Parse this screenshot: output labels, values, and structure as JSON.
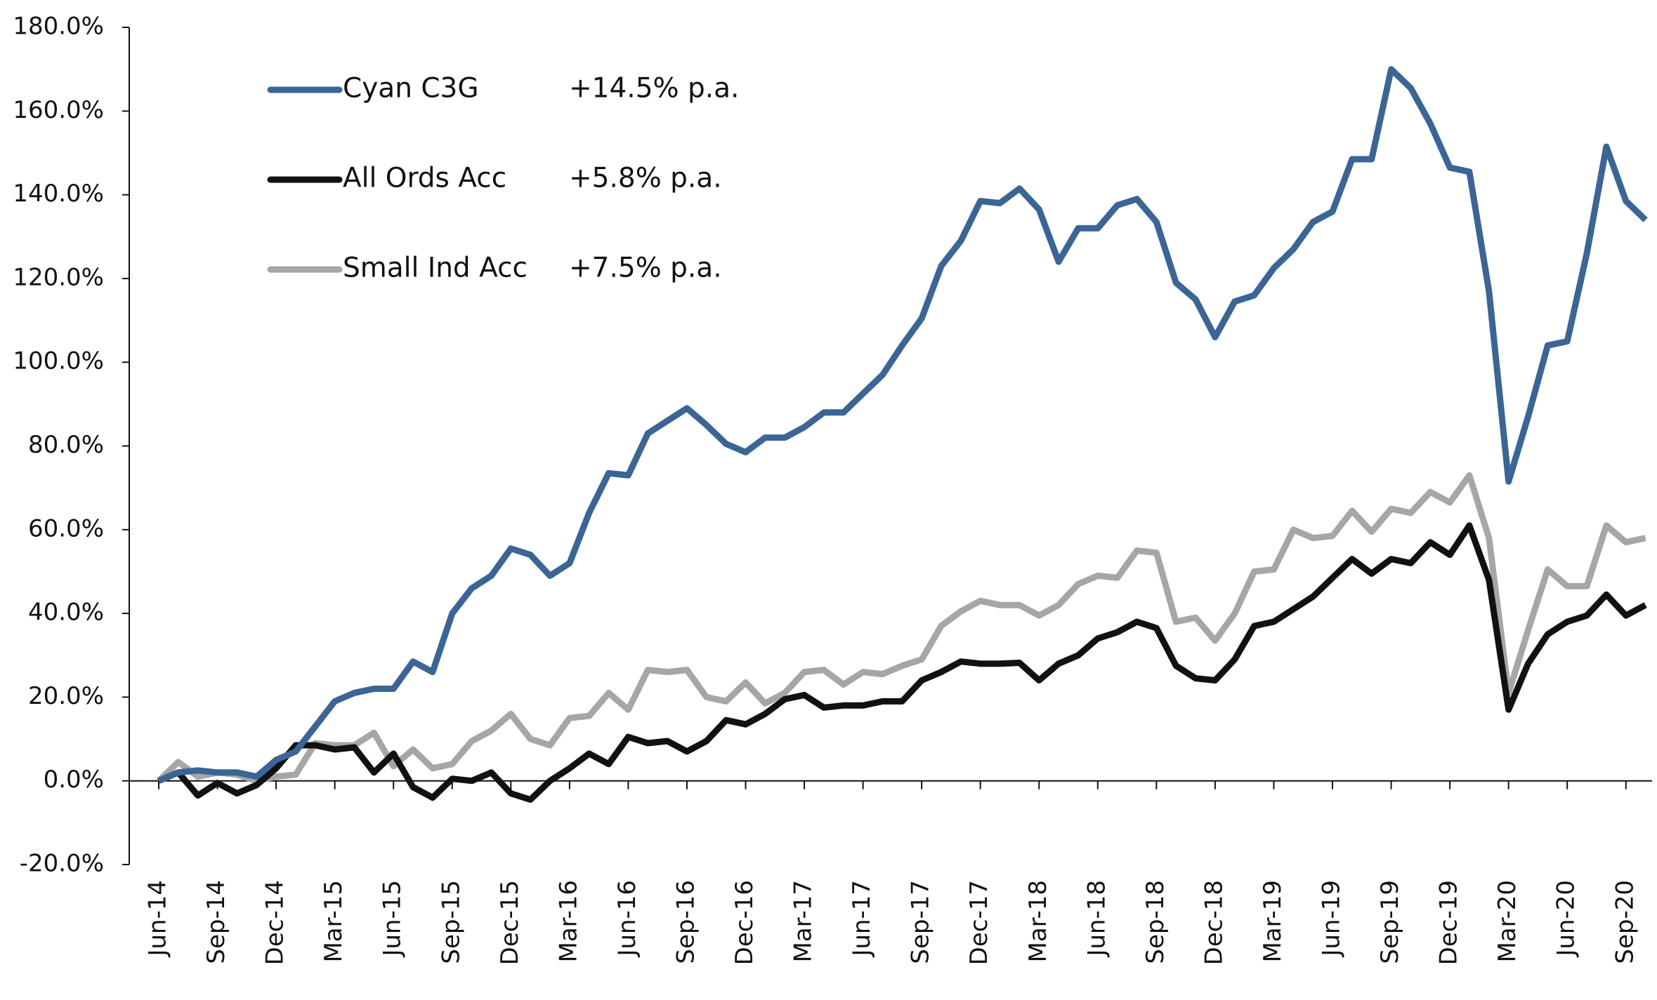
{
  "chart_data": {
    "type": "line",
    "categories": [
      "Jun-14",
      null,
      null,
      "Sep-14",
      null,
      null,
      "Dec-14",
      null,
      null,
      "Mar-15",
      null,
      null,
      "Jun-15",
      null,
      null,
      "Sep-15",
      null,
      null,
      "Dec-15",
      null,
      null,
      "Mar-16",
      null,
      null,
      "Jun-16",
      null,
      null,
      "Sep-16",
      null,
      null,
      "Dec-16",
      null,
      null,
      "Mar-17",
      null,
      null,
      "Jun-17",
      null,
      null,
      "Sep-17",
      null,
      null,
      "Dec-17",
      null,
      null,
      "Mar-18",
      null,
      null,
      "Jun-18",
      null,
      null,
      "Sep-18",
      null,
      null,
      "Dec-18",
      null,
      null,
      "Mar-19",
      null,
      null,
      "Jun-19",
      null,
      null,
      "Sep-19",
      null,
      null,
      "Dec-19",
      null,
      null,
      "Mar-20",
      null,
      null,
      "Jun-20",
      null,
      null,
      "Sep-20",
      null
    ],
    "series": [
      {
        "name": "Cyan C3G",
        "note": "+14.5% p.a.",
        "color": "#3a6595",
        "values": [
          0,
          2,
          2.5,
          2,
          2,
          1,
          5,
          7,
          13,
          19,
          21,
          22,
          22,
          28.5,
          26,
          40,
          46,
          49,
          55.5,
          54,
          49,
          52,
          64,
          73.5,
          73,
          83,
          86,
          89,
          85,
          80.5,
          78.5,
          82,
          82,
          84.5,
          88,
          88,
          92.5,
          97,
          104,
          110.5,
          123,
          129,
          138.5,
          138,
          141.5,
          136.5,
          124,
          132,
          132,
          137.5,
          139,
          133.5,
          119,
          115,
          106,
          114.5,
          116,
          122.5,
          127,
          133.5,
          136,
          148.5,
          148.5,
          170,
          165.5,
          157,
          146.5,
          145.5,
          117,
          71.5,
          87,
          104,
          105,
          126,
          151.5,
          138.5,
          134
        ]
      },
      {
        "name": "All Ords Acc",
        "note": "+5.8% p.a.",
        "color": "#111111",
        "values": [
          0,
          2,
          -3.5,
          -0.5,
          -3,
          -1,
          3,
          8.5,
          8.5,
          7.5,
          8,
          2,
          6.5,
          -1.5,
          -4,
          0.5,
          0,
          2,
          -3,
          -4.5,
          0,
          3,
          6.5,
          4,
          10.5,
          9,
          9.5,
          7,
          9.5,
          14.5,
          13.5,
          16,
          19.5,
          20.5,
          17.5,
          18,
          18,
          19,
          19,
          24,
          26,
          28.5,
          28,
          28,
          28.2,
          24,
          28,
          30,
          34,
          35.5,
          38,
          36.5,
          27.5,
          24.5,
          24,
          29,
          37,
          38,
          41,
          44,
          48.5,
          53,
          49.5,
          53,
          52,
          57,
          54,
          61,
          48,
          17,
          28,
          35,
          38,
          39.5,
          44.5,
          39.5,
          42
        ]
      },
      {
        "name": "Small Ind Acc",
        "note": "+7.5% p.a.",
        "color": "#a6a6a6",
        "values": [
          0,
          4.5,
          1,
          2,
          1.5,
          0,
          1,
          1.5,
          9,
          8.5,
          8.5,
          11.5,
          3.5,
          7.5,
          3,
          4,
          9.5,
          12,
          16,
          10,
          8.5,
          15,
          15.5,
          21,
          17,
          26.5,
          26,
          26.5,
          20,
          19,
          23.5,
          18.5,
          21,
          26,
          26.5,
          23,
          26,
          25.5,
          27.5,
          29,
          37,
          40.5,
          43,
          42,
          42,
          39.5,
          42,
          47,
          49,
          48.5,
          55,
          54.5,
          38,
          39,
          33.5,
          40,
          50,
          50.5,
          60,
          58,
          58.5,
          64.5,
          59.5,
          65,
          64,
          69,
          66.5,
          73,
          58,
          21,
          36,
          50.5,
          46.5,
          46.5,
          61,
          57,
          58
        ]
      }
    ],
    "ylim": [
      -20,
      180
    ],
    "yticks": [
      {
        "value": -20,
        "label": "-20.0%"
      },
      {
        "value": 0,
        "label": "0.0%"
      },
      {
        "value": 20,
        "label": "20.0%"
      },
      {
        "value": 40,
        "label": "40.0%"
      },
      {
        "value": 60,
        "label": "60.0%"
      },
      {
        "value": 80,
        "label": "80.0%"
      },
      {
        "value": 100,
        "label": "100.0%"
      },
      {
        "value": 120,
        "label": "120.0%"
      },
      {
        "value": 140,
        "label": "140.0%"
      },
      {
        "value": 160,
        "label": "160.0%"
      },
      {
        "value": 180,
        "label": "180.0%"
      }
    ],
    "grid": false,
    "legend": "upper left"
  }
}
